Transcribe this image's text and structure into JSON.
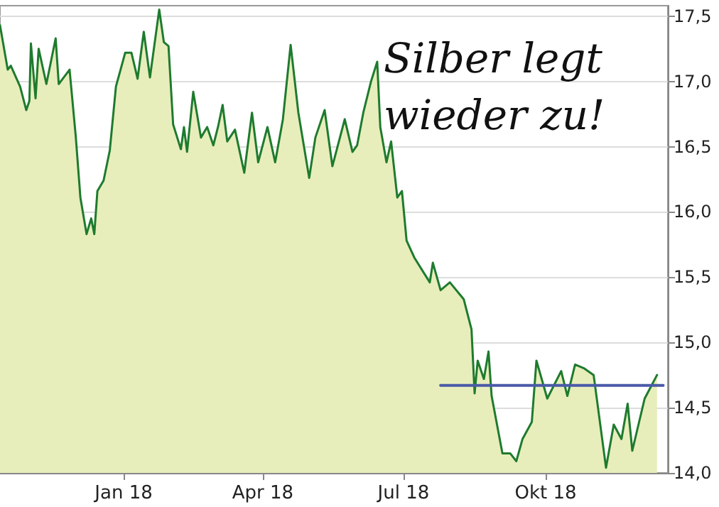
{
  "chart_data": {
    "type": "area",
    "title": "Silber legt wieder zu!",
    "xlim": [
      "2017-10-13",
      "2018-12-19"
    ],
    "ylim": [
      14.0,
      17.58
    ],
    "xticks": [
      {
        "value": "2018-01-01",
        "label": "Jan 18"
      },
      {
        "value": "2018-04-01",
        "label": "Apr 18"
      },
      {
        "value": "2018-07-01",
        "label": "Jul 18"
      },
      {
        "value": "2018-10-01",
        "label": "Okt 18"
      }
    ],
    "yticks": [
      {
        "value": 14.0,
        "label": "14,0"
      },
      {
        "value": 14.5,
        "label": "14,5"
      },
      {
        "value": 15.0,
        "label": "15,0"
      },
      {
        "value": 15.5,
        "label": "15,5"
      },
      {
        "value": 16.0,
        "label": "16,0"
      },
      {
        "value": 16.5,
        "label": "16,5"
      },
      {
        "value": 17.0,
        "label": "17,0"
      },
      {
        "value": 17.5,
        "label": "17,5"
      }
    ],
    "grid": "y",
    "marker": "none",
    "line_style": "solid",
    "series": [
      {
        "color": "#1e7b2e",
        "x": [
          "2017-10-13",
          "2017-10-18",
          "2017-10-20",
          "2017-10-26",
          "2017-10-30",
          "2017-11-01",
          "2017-11-02",
          "2017-11-05",
          "2017-11-07",
          "2017-11-12",
          "2017-11-18",
          "2017-11-20",
          "2017-11-27",
          "2017-12-01",
          "2017-12-04",
          "2017-12-08",
          "2017-12-11",
          "2017-12-13",
          "2017-12-15",
          "2017-12-19",
          "2017-12-23",
          "2017-12-27",
          "2018-01-02",
          "2018-01-06",
          "2018-01-10",
          "2018-01-14",
          "2018-01-18",
          "2018-01-24",
          "2018-01-27",
          "2018-01-30",
          "2018-02-02",
          "2018-02-07",
          "2018-02-09",
          "2018-02-11",
          "2018-02-15",
          "2018-02-20",
          "2018-02-24",
          "2018-02-28",
          "2018-03-03",
          "2018-03-06",
          "2018-03-09",
          "2018-03-14",
          "2018-03-20",
          "2018-03-25",
          "2018-03-29",
          "2018-04-04",
          "2018-04-09",
          "2018-04-14",
          "2018-04-19",
          "2018-04-24",
          "2018-05-01",
          "2018-05-05",
          "2018-05-11",
          "2018-05-16",
          "2018-05-24",
          "2018-05-29",
          "2018-06-01",
          "2018-06-05",
          "2018-06-10",
          "2018-06-14",
          "2018-06-16",
          "2018-06-20",
          "2018-06-23",
          "2018-06-27",
          "2018-06-30",
          "2018-07-03",
          "2018-07-08",
          "2018-07-18",
          "2018-07-20",
          "2018-07-25",
          "2018-07-31",
          "2018-08-09",
          "2018-08-14",
          "2018-08-16",
          "2018-08-18",
          "2018-08-22",
          "2018-08-25",
          "2018-08-27",
          "2018-09-03",
          "2018-09-08",
          "2018-09-12",
          "2018-09-16",
          "2018-09-22",
          "2018-09-25",
          "2018-10-02",
          "2018-10-11",
          "2018-10-15",
          "2018-10-20",
          "2018-10-26",
          "2018-11-01",
          "2018-11-09",
          "2018-11-14",
          "2018-11-19",
          "2018-11-23",
          "2018-11-26",
          "2018-12-04",
          "2018-12-12"
        ],
        "values": [
          17.43,
          17.09,
          17.12,
          16.96,
          16.78,
          16.85,
          17.29,
          16.87,
          17.25,
          16.98,
          17.33,
          16.98,
          17.09,
          16.58,
          16.11,
          15.83,
          15.95,
          15.83,
          16.16,
          16.24,
          16.47,
          16.96,
          17.22,
          17.22,
          17.02,
          17.38,
          17.03,
          17.55,
          17.3,
          17.27,
          16.67,
          16.48,
          16.65,
          16.46,
          16.92,
          16.57,
          16.65,
          16.51,
          16.65,
          16.82,
          16.54,
          16.63,
          16.3,
          16.76,
          16.38,
          16.65,
          16.38,
          16.71,
          17.28,
          16.76,
          16.26,
          16.57,
          16.78,
          16.35,
          16.71,
          16.46,
          16.51,
          16.76,
          17.0,
          17.15,
          16.65,
          16.38,
          16.54,
          16.11,
          16.16,
          15.78,
          15.65,
          15.46,
          15.61,
          15.4,
          15.46,
          15.33,
          15.1,
          14.61,
          14.86,
          14.72,
          14.93,
          14.59,
          14.15,
          14.15,
          14.09,
          14.26,
          14.39,
          14.86,
          14.57,
          14.78,
          14.59,
          14.83,
          14.8,
          14.75,
          14.04,
          14.37,
          14.26,
          14.53,
          14.17,
          14.57,
          14.75
        ]
      },
      {
        "type": "line",
        "color": "#4a5aa8",
        "x": [
          "2018-07-25",
          "2018-12-16"
        ],
        "values": [
          14.67,
          14.67
        ]
      }
    ]
  }
}
